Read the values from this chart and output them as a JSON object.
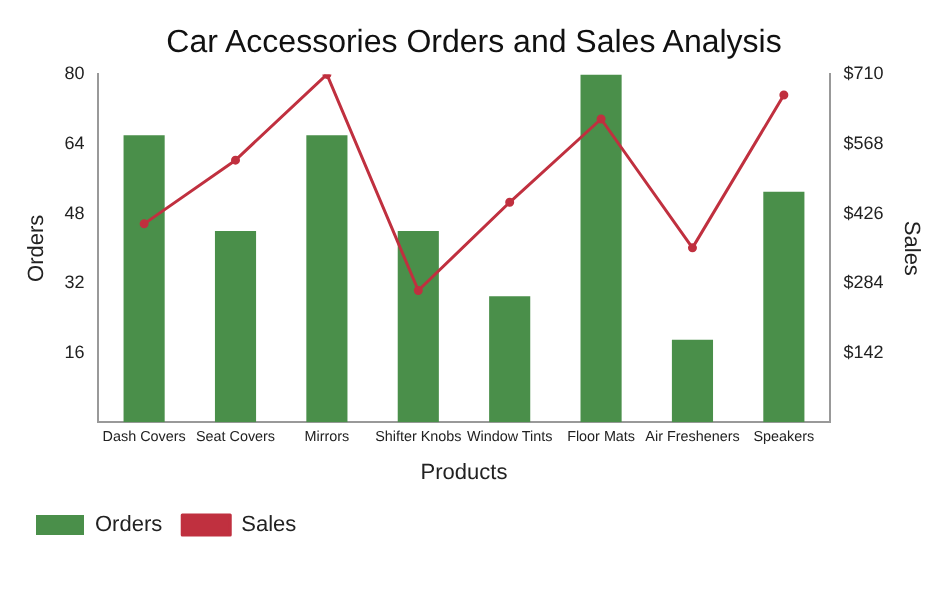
{
  "chart_data": {
    "type": "bar",
    "title": "Car Accessories Orders and Sales Analysis",
    "xlabel": "Products",
    "ylabel": "Orders",
    "y2label": "Sales",
    "categories": [
      "Dash Covers",
      "Seat Covers",
      "Mirrors",
      "Shifter Knobs",
      "Window Tints",
      "Floor Mats",
      "Air Fresheners",
      "Speakers"
    ],
    "series": [
      {
        "name": "Orders",
        "color": "#4a8f4a",
        "values": [
          66,
          44,
          66,
          44,
          29,
          80,
          19,
          53
        ]
      },
      {
        "name": "Sales",
        "type": "line",
        "axis": "y2",
        "color": "#c0303f",
        "values": [
          405,
          535,
          710,
          269,
          449,
          619,
          356,
          668
        ]
      }
    ],
    "ylim": [
      0,
      80
    ],
    "yticks": [
      16,
      32,
      48,
      64,
      80
    ],
    "y2lim": [
      0,
      710
    ],
    "y2ticks": [
      {
        "value": 142,
        "label": "$142"
      },
      {
        "value": 284,
        "label": "$284"
      },
      {
        "value": 426,
        "label": "$426"
      },
      {
        "value": 568,
        "label": "$568"
      },
      {
        "value": 710,
        "label": "$710"
      }
    ],
    "marker": "circle",
    "line_style": "solid",
    "grid": false,
    "legend": "bottom left"
  }
}
